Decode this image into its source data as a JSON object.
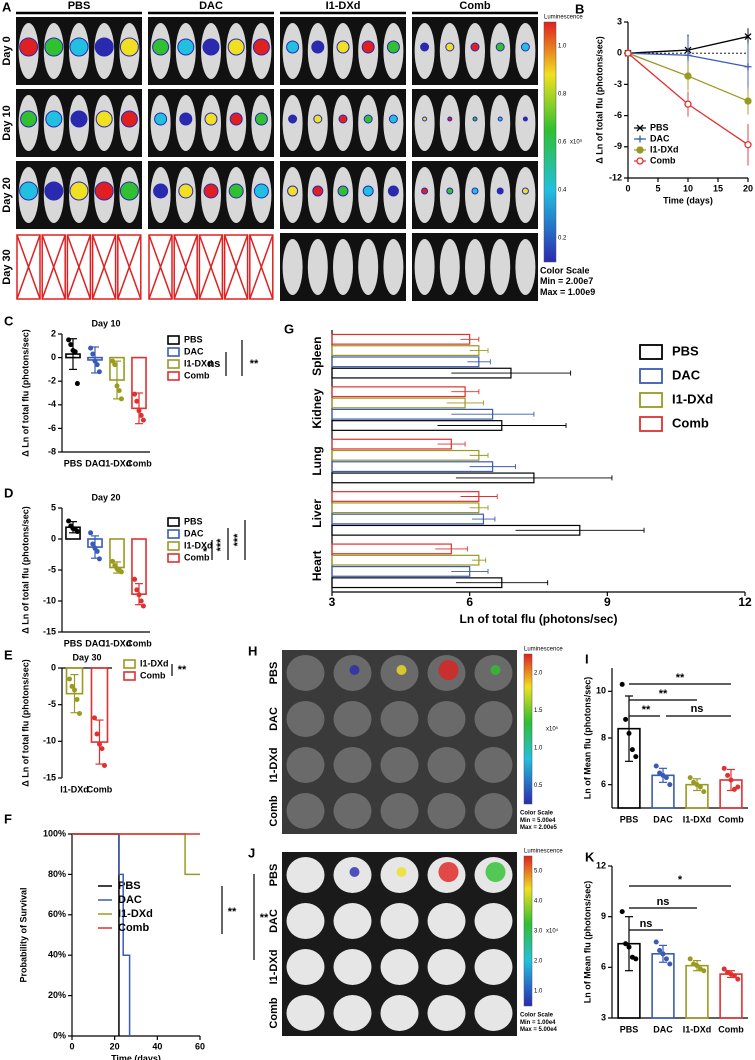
{
  "panels": {
    "A": {
      "letter": "A",
      "groups": [
        "PBS",
        "DAC",
        "I1-DXd",
        "Comb"
      ],
      "rows": [
        "Day 0",
        "Day 10",
        "Day 20",
        "Day 30"
      ],
      "scale_title": "Luminescence",
      "scale_ticks": [
        "1.0",
        "0.8",
        "0.6",
        "0.4",
        "0.2"
      ],
      "scale_unit": "x10⁹",
      "scale_label": "Color Scale",
      "scale_min": "Min = 2.00e7",
      "scale_max": "Max = 1.00e9"
    },
    "H": {
      "letter": "H",
      "rows": [
        "PBS",
        "DAC",
        "I1-DXd",
        "Comb"
      ],
      "scale_title": "Luminescence",
      "scale_ticks": [
        "2.0",
        "1.5",
        "1.0",
        "0.5"
      ],
      "scale_unit": "x10⁵",
      "scale_label": "Color Scale",
      "scale_min": "Min = 5.00e4",
      "scale_max": "Max = 2.00e5"
    },
    "J": {
      "letter": "J",
      "rows": [
        "PBS",
        "DAC",
        "I1-DXd",
        "Comb"
      ],
      "scale_title": "Luminescence",
      "scale_ticks": [
        "5.0",
        "4.0",
        "3.0",
        "2.0",
        "1.0"
      ],
      "scale_unit": "x10⁴",
      "scale_label": "Color Scale",
      "scale_min": "Min = 1.00e4",
      "scale_max": "Max = 5.00e4"
    }
  },
  "chart_data": [
    {
      "type": "line",
      "letter": "B",
      "x": [
        0,
        10,
        20
      ],
      "xlim": [
        0,
        20
      ],
      "xticks": [
        0,
        5,
        10,
        15,
        20
      ],
      "ylim": [
        -12,
        3
      ],
      "yticks": [
        -12,
        -9,
        -6,
        -3,
        0,
        3
      ],
      "xlabel": "Time (days)",
      "ylabel": "Δ Ln of total flu (photons/sec)",
      "legend": true,
      "series": [
        {
          "name": "PBS",
          "color": "#000000",
          "marker": "x",
          "values": [
            0,
            0.3,
            1.6
          ],
          "errors": [
            0,
            1.5,
            0.8
          ]
        },
        {
          "name": "DAC",
          "color": "#3a5bb5",
          "marker": "plus",
          "values": [
            0,
            -0.2,
            -1.3
          ],
          "errors": [
            0,
            1.8,
            2.3
          ]
        },
        {
          "name": "I1-DXd",
          "color": "#9a9a20",
          "marker": "circle",
          "values": [
            0,
            -2.2,
            -4.6
          ],
          "errors": [
            0,
            1.4,
            1.3
          ]
        },
        {
          "name": "Comb",
          "color": "#e03030",
          "marker": "open-circle",
          "values": [
            0,
            -4.9,
            -8.8
          ],
          "errors": [
            0,
            1.2,
            2.0
          ]
        }
      ]
    },
    {
      "type": "bar",
      "letter": "C",
      "title": "Day 10",
      "categories": [
        "PBS",
        "DAC",
        "I1-DXd",
        "Comb"
      ],
      "colors": [
        "#000000",
        "#3a5bb5",
        "#9a9a20",
        "#e03030"
      ],
      "values": [
        0.3,
        -0.2,
        -1.9,
        -4.3
      ],
      "errors": [
        1.3,
        1.1,
        1.6,
        1.3
      ],
      "points": [
        [
          1.5,
          1.1,
          0.6,
          0.5,
          -2.2
        ],
        [
          0.8,
          0.3,
          -0.3,
          -0.6,
          -1.2
        ],
        [
          -0.3,
          -0.6,
          -2.4,
          -2.8,
          -3.5
        ],
        [
          -3.1,
          -3.7,
          -4.5,
          -4.9,
          -5.3
        ]
      ],
      "ylim": [
        -8,
        2
      ],
      "yticks": [
        -8,
        -6,
        -4,
        -2,
        0,
        2
      ],
      "ylabel": "Δ Ln of total flu (photons/sec)",
      "legend": true,
      "significance": [
        "ns",
        "**"
      ]
    },
    {
      "type": "bar",
      "letter": "D",
      "title": "Day 20",
      "categories": [
        "PBS",
        "DAC",
        "I1-DXd",
        "Comb"
      ],
      "colors": [
        "#000000",
        "#3a5bb5",
        "#9a9a20",
        "#e03030"
      ],
      "values": [
        1.9,
        -1.3,
        -4.6,
        -8.9
      ],
      "errors": [
        0.9,
        1.8,
        0.9,
        1.7
      ],
      "points": [
        [
          2.9,
          2.1,
          1.7,
          1.6,
          1.2
        ],
        [
          1.0,
          -0.8,
          -1.5,
          -2.0,
          -3.2
        ],
        [
          -3.6,
          -4.3,
          -4.8,
          -5.0,
          -5.3
        ],
        [
          -6.5,
          -8.2,
          -9.0,
          -10.0,
          -10.8
        ]
      ],
      "ylim": [
        -15,
        5
      ],
      "yticks": [
        -15,
        -10,
        -5,
        0,
        5
      ],
      "ylabel": "Δ Ln of total flu (photons/sec)",
      "legend": true,
      "significance": [
        "*",
        "***",
        "***"
      ]
    },
    {
      "type": "bar",
      "letter": "E",
      "title": "Day 30",
      "categories": [
        "I1-DXd",
        "Comb"
      ],
      "colors": [
        "#9a9a20",
        "#e03030"
      ],
      "values": [
        -3.5,
        -10.1
      ],
      "errors": [
        2.6,
        3.0
      ],
      "points": [
        [
          -1.5,
          -2.5,
          -3.0,
          -4.3,
          -6.2
        ],
        [
          -6.8,
          -9.0,
          -10.4,
          -11.0,
          -13.3
        ]
      ],
      "ylim": [
        -15,
        0
      ],
      "yticks": [
        0,
        -5,
        -10,
        -15
      ],
      "ylabel": "Δ Ln of total flu (photons/sec)",
      "legend": true,
      "significance": [
        "**"
      ]
    },
    {
      "type": "step",
      "letter": "F",
      "xlim": [
        0,
        60
      ],
      "xticks": [
        0,
        20,
        40,
        60
      ],
      "ylim": [
        0,
        100
      ],
      "yticks": [
        {
          "value": 0,
          "label": "0%"
        },
        {
          "value": 20,
          "label": "20%"
        },
        {
          "value": 40,
          "label": "40%"
        },
        {
          "value": 60,
          "label": "60%"
        },
        {
          "value": 80,
          "label": "80%"
        },
        {
          "value": 100,
          "label": "100%"
        }
      ],
      "xlabel": "Time (days)",
      "ylabel": "Probability of Survival",
      "legend": true,
      "significance": [
        "**",
        "**"
      ],
      "series": [
        {
          "name": "PBS",
          "color": "#000000",
          "x": [
            0,
            22
          ],
          "values": [
            100,
            0
          ]
        },
        {
          "name": "DAC",
          "color": "#3a5bb5",
          "x": [
            0,
            22,
            24,
            27
          ],
          "values": [
            100,
            80,
            40,
            0
          ]
        },
        {
          "name": "I1-DXd",
          "color": "#9a9a20",
          "x": [
            0,
            53,
            60
          ],
          "values": [
            100,
            80,
            80
          ]
        },
        {
          "name": "Comb",
          "color": "#e03030",
          "x": [
            0,
            60
          ],
          "values": [
            100,
            100
          ]
        }
      ]
    },
    {
      "type": "hbar",
      "letter": "G",
      "categories": [
        "Spleen",
        "Kidney",
        "Lung",
        "Liver",
        "Heart"
      ],
      "xlim": [
        3,
        12
      ],
      "xticks": [
        3,
        6,
        9,
        12
      ],
      "xlabel": "Ln of total flu (photons/sec)",
      "legend": true,
      "series": [
        {
          "name": "PBS",
          "color": "#000000",
          "values": [
            6.9,
            6.7,
            7.4,
            8.4,
            6.7
          ],
          "errors": [
            1.3,
            1.4,
            1.7,
            1.4,
            1.0
          ]
        },
        {
          "name": "DAC",
          "color": "#3a5bb5",
          "values": [
            6.2,
            6.5,
            6.5,
            6.3,
            6.0
          ],
          "errors": [
            0.25,
            0.9,
            0.5,
            0.25,
            0.4
          ]
        },
        {
          "name": "I1-DXd",
          "color": "#9a9a20",
          "values": [
            6.2,
            5.9,
            6.2,
            6.2,
            6.2
          ],
          "errors": [
            0.2,
            0.4,
            0.2,
            0.2,
            0.15
          ]
        },
        {
          "name": "Comb",
          "color": "#e03030",
          "values": [
            6.0,
            5.9,
            5.6,
            6.2,
            5.6
          ],
          "errors": [
            0.2,
            0.3,
            0.3,
            0.4,
            0.35
          ]
        }
      ]
    },
    {
      "type": "bar",
      "letter": "I",
      "categories": [
        "PBS",
        "DAC",
        "I1-DXd",
        "Comb"
      ],
      "colors": [
        "#000000",
        "#3a5bb5",
        "#9a9a20",
        "#e03030"
      ],
      "values": [
        8.4,
        6.4,
        6.0,
        6.2
      ],
      "errors": [
        1.4,
        0.3,
        0.25,
        0.45
      ],
      "points": [
        [
          10.3,
          8.8,
          8.2,
          7.5,
          7.2
        ],
        [
          6.8,
          6.5,
          6.4,
          6.3,
          6.0
        ],
        [
          6.3,
          6.1,
          6.0,
          5.9,
          5.7
        ],
        [
          6.7,
          6.4,
          6.2,
          5.8,
          5.9
        ]
      ],
      "ylim": [
        5,
        11
      ],
      "yticks": [
        6,
        8,
        10
      ],
      "ylabel": "Ln of Mean flu (photons/sec)",
      "significance": [
        "**",
        "**",
        "**",
        "ns"
      ]
    },
    {
      "type": "bar",
      "letter": "K",
      "categories": [
        "PBS",
        "DAC",
        "I1-DXd",
        "Comb"
      ],
      "colors": [
        "#000000",
        "#3a5bb5",
        "#9a9a20",
        "#e03030"
      ],
      "values": [
        7.4,
        6.8,
        6.1,
        5.6
      ],
      "errors": [
        1.6,
        0.5,
        0.3,
        0.2
      ],
      "points": [
        [
          9.3,
          7.4,
          7.2,
          6.6,
          6.5
        ],
        [
          7.5,
          7.0,
          6.8,
          6.5,
          6.2
        ],
        [
          6.5,
          6.2,
          6.1,
          5.9,
          5.8
        ],
        [
          5.9,
          5.7,
          5.6,
          5.5,
          5.3
        ]
      ],
      "ylim": [
        3,
        12
      ],
      "yticks": [
        3,
        6,
        9,
        12
      ],
      "ylabel": "Ln of Mean flu (photons/sec)",
      "significance": [
        "ns",
        "ns",
        "*"
      ]
    }
  ]
}
